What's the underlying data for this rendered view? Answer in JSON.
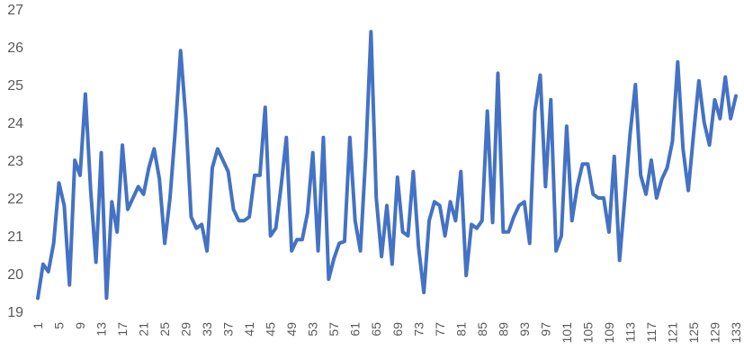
{
  "chart_data": {
    "type": "line",
    "title": "",
    "xlabel": "",
    "ylabel": "",
    "ylim": [
      19,
      27
    ],
    "yticks": [
      19,
      20,
      21,
      22,
      23,
      24,
      25,
      26,
      27
    ],
    "xlim": [
      1,
      133
    ],
    "xticks": [
      1,
      5,
      9,
      13,
      17,
      21,
      25,
      29,
      33,
      37,
      41,
      45,
      49,
      53,
      57,
      61,
      65,
      69,
      73,
      77,
      81,
      85,
      89,
      93,
      97,
      101,
      105,
      109,
      113,
      117,
      121,
      125,
      129,
      133
    ],
    "grid": false,
    "legend": "none",
    "color": "#4472C4",
    "series": [
      {
        "x": [
          1,
          2,
          3,
          4,
          5,
          6,
          7,
          8,
          9,
          10,
          11,
          12,
          13,
          14,
          15,
          16,
          17,
          18,
          19,
          20,
          21,
          22,
          23,
          24,
          25,
          26,
          27,
          28,
          29,
          30,
          31,
          32,
          33,
          34,
          35,
          36,
          37,
          38,
          39,
          40,
          41,
          42,
          43,
          44,
          45,
          46,
          47,
          48,
          49,
          50,
          51,
          52,
          53,
          54,
          55,
          56,
          57,
          58,
          59,
          60,
          61,
          62,
          63,
          64,
          65,
          66,
          67,
          68,
          69,
          70,
          71,
          72,
          73,
          74,
          75,
          76,
          77,
          78,
          79,
          80,
          81,
          82,
          83,
          84,
          85,
          86,
          87,
          88,
          89,
          90,
          91,
          92,
          93,
          94,
          95,
          96,
          97,
          98,
          99,
          100,
          101,
          102,
          103,
          104,
          105,
          106,
          107,
          108,
          109,
          110,
          111,
          112,
          113,
          114,
          115,
          116,
          117,
          118,
          119,
          120,
          121,
          122,
          123,
          124,
          125,
          126,
          127,
          128,
          129,
          130,
          131,
          132,
          133
        ],
        "values": [
          19.35,
          20.25,
          20.05,
          20.8,
          22.4,
          21.8,
          19.7,
          23.0,
          22.6,
          24.75,
          22.2,
          20.3,
          23.2,
          19.35,
          21.9,
          21.1,
          23.4,
          21.7,
          22.0,
          22.3,
          22.1,
          22.8,
          23.3,
          22.5,
          20.8,
          22.0,
          23.8,
          25.9,
          24.1,
          21.5,
          21.2,
          21.3,
          20.6,
          22.8,
          23.3,
          23.0,
          22.7,
          21.7,
          21.4,
          21.4,
          21.5,
          22.6,
          22.6,
          24.4,
          21.0,
          21.2,
          22.3,
          23.6,
          20.6,
          20.9,
          20.9,
          21.6,
          23.2,
          20.6,
          23.6,
          19.85,
          20.4,
          20.8,
          20.85,
          23.6,
          21.4,
          20.6,
          23.1,
          26.4,
          22.0,
          20.45,
          21.8,
          20.25,
          22.55,
          21.1,
          21.0,
          22.7,
          20.7,
          19.5,
          21.4,
          21.9,
          21.8,
          21.0,
          21.9,
          21.4,
          22.7,
          19.95,
          21.3,
          21.2,
          21.4,
          24.3,
          21.35,
          25.3,
          21.1,
          21.1,
          21.5,
          21.8,
          21.9,
          20.8,
          24.3,
          25.25,
          22.3,
          24.6,
          20.6,
          21.0,
          23.9,
          21.4,
          22.3,
          22.9,
          22.9,
          22.1,
          22.0,
          22.0,
          21.1,
          23.1,
          20.35,
          22.0,
          23.7,
          25.0,
          22.6,
          22.1,
          23.0,
          22.0,
          22.5,
          22.8,
          23.5,
          25.6,
          23.3,
          22.2,
          23.7,
          25.1,
          24.0,
          23.4,
          24.6,
          24.1,
          25.2,
          24.1,
          24.7
        ]
      }
    ]
  }
}
